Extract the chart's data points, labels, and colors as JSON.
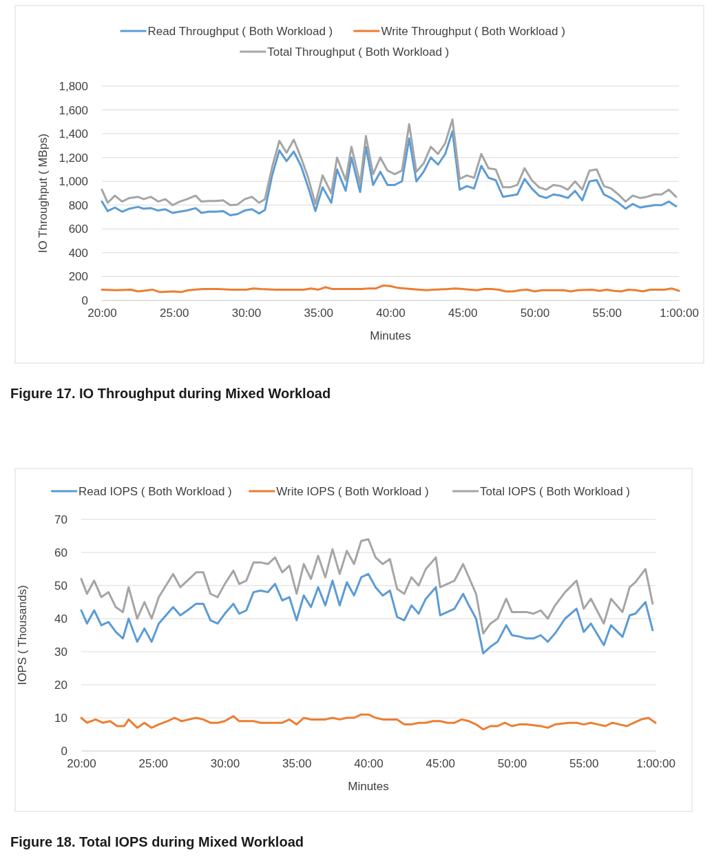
{
  "chart_data": [
    {
      "type": "line",
      "title": "Figure 17. IO Throughput during Mixed Workload",
      "xlabel": "Minutes",
      "ylabel": "IO Throughput ( MBps)",
      "grid": "y",
      "legend": "top",
      "marker": "none",
      "line_style": "solid",
      "xlim": [
        20,
        60
      ],
      "xticks": [
        {
          "value": 20,
          "label": "20:00"
        },
        {
          "value": 25,
          "label": "25:00"
        },
        {
          "value": 30,
          "label": "30:00"
        },
        {
          "value": 35,
          "label": "35:00"
        },
        {
          "value": 40,
          "label": "40:00"
        },
        {
          "value": 45,
          "label": "45:00"
        },
        {
          "value": 50,
          "label": "50:00"
        },
        {
          "value": 55,
          "label": "55:00"
        },
        {
          "value": 60,
          "label": "1:00:00"
        }
      ],
      "ylim": [
        0,
        1800
      ],
      "yticks": [
        0,
        200,
        400,
        600,
        800,
        {
          "value": 1000,
          "label": "1,000"
        },
        {
          "value": 1200,
          "label": "1,200"
        },
        {
          "value": 1400,
          "label": "1,400"
        },
        {
          "value": 1600,
          "label": "1,600"
        },
        {
          "value": 1800,
          "label": "1,800"
        }
      ],
      "series": [
        {
          "name": "Read Throughput ( Both Workload )",
          "color": "#5b9bd5",
          "x": [
            20.0,
            20.4,
            20.9,
            21.4,
            21.9,
            22.5,
            22.9,
            23.4,
            23.9,
            24.4,
            24.9,
            25.4,
            25.9,
            26.5,
            26.9,
            27.4,
            27.9,
            28.4,
            28.9,
            29.4,
            29.9,
            30.4,
            30.9,
            31.3,
            31.8,
            32.3,
            32.8,
            33.3,
            33.8,
            34.3,
            34.8,
            35.3,
            35.9,
            36.3,
            36.9,
            37.3,
            37.9,
            38.3,
            38.8,
            39.3,
            39.8,
            40.3,
            40.8,
            41.3,
            41.8,
            42.3,
            42.8,
            43.3,
            43.8,
            44.3,
            44.8,
            45.3,
            45.8,
            46.3,
            46.8,
            47.3,
            47.8,
            48.3,
            48.8,
            49.3,
            49.8,
            50.3,
            50.8,
            51.3,
            51.8,
            52.3,
            52.8,
            53.3,
            53.8,
            54.3,
            54.8,
            55.3,
            55.8,
            56.3,
            56.8,
            57.3,
            57.8,
            58.3,
            58.8,
            59.3,
            59.8
          ],
          "values": [
            830,
            750,
            780,
            745,
            770,
            785,
            770,
            775,
            755,
            765,
            735,
            745,
            755,
            775,
            735,
            745,
            745,
            750,
            715,
            725,
            755,
            765,
            730,
            760,
            1050,
            1260,
            1170,
            1250,
            1130,
            950,
            750,
            950,
            820,
            1100,
            920,
            1200,
            910,
            1290,
            970,
            1080,
            970,
            970,
            1000,
            1360,
            1000,
            1080,
            1200,
            1140,
            1230,
            1420,
            930,
            960,
            940,
            1130,
            1030,
            1010,
            870,
            880,
            890,
            1020,
            940,
            880,
            860,
            890,
            880,
            860,
            920,
            840,
            1000,
            1010,
            890,
            860,
            820,
            770,
            810,
            780,
            790,
            800,
            800,
            830,
            790
          ]
        },
        {
          "name": "Write  Throughput ( Both Workload )",
          "color": "#ed7d31",
          "x": [
            20,
            21,
            22,
            22.5,
            23.5,
            24,
            25,
            25.5,
            26,
            27,
            28,
            29,
            30,
            30.5,
            31,
            32,
            33,
            34,
            34.5,
            35,
            35.5,
            36,
            37,
            38,
            38.5,
            39,
            39.5,
            40,
            40.5,
            41,
            42,
            42.5,
            43,
            44,
            44.5,
            45,
            45.5,
            46,
            46.5,
            47,
            47.5,
            48,
            48.5,
            49,
            49.5,
            50,
            50.5,
            51,
            52,
            52.5,
            53,
            54,
            54.5,
            55,
            55.5,
            56,
            56.5,
            57,
            57.5,
            58,
            59,
            59.5,
            60
          ],
          "values": [
            90,
            85,
            90,
            75,
            90,
            70,
            75,
            70,
            85,
            95,
            95,
            90,
            90,
            100,
            95,
            90,
            90,
            90,
            100,
            90,
            110,
            95,
            95,
            95,
            100,
            100,
            125,
            120,
            105,
            100,
            90,
            85,
            90,
            95,
            100,
            95,
            90,
            85,
            95,
            95,
            90,
            75,
            75,
            85,
            90,
            75,
            85,
            85,
            85,
            75,
            85,
            90,
            80,
            90,
            80,
            75,
            90,
            85,
            75,
            90,
            90,
            100,
            80
          ]
        },
        {
          "name": "Total Throughput ( Both Workload )",
          "color": "#a5a5a5",
          "x": [
            20.0,
            20.4,
            20.9,
            21.4,
            21.9,
            22.5,
            22.9,
            23.4,
            23.9,
            24.4,
            24.9,
            25.4,
            25.9,
            26.5,
            26.9,
            27.4,
            27.9,
            28.4,
            28.9,
            29.4,
            29.9,
            30.4,
            30.9,
            31.3,
            31.8,
            32.3,
            32.8,
            33.3,
            33.8,
            34.3,
            34.8,
            35.3,
            35.9,
            36.3,
            36.9,
            37.3,
            37.9,
            38.3,
            38.8,
            39.3,
            39.8,
            40.3,
            40.8,
            41.3,
            41.8,
            42.3,
            42.8,
            43.3,
            43.8,
            44.3,
            44.8,
            45.3,
            45.8,
            46.3,
            46.8,
            47.3,
            47.8,
            48.3,
            48.8,
            49.3,
            49.8,
            50.3,
            50.8,
            51.3,
            51.8,
            52.3,
            52.8,
            53.3,
            53.8,
            54.3,
            54.8,
            55.3,
            55.8,
            56.3,
            56.8,
            57.3,
            57.8,
            58.3,
            58.8,
            59.3,
            59.8
          ],
          "values": [
            930,
            820,
            880,
            830,
            860,
            870,
            850,
            870,
            830,
            850,
            800,
            830,
            850,
            880,
            830,
            835,
            835,
            840,
            800,
            805,
            850,
            870,
            820,
            850,
            1120,
            1340,
            1240,
            1350,
            1200,
            1030,
            810,
            1050,
            900,
            1200,
            1010,
            1290,
            980,
            1380,
            1060,
            1200,
            1090,
            1060,
            1090,
            1480,
            1080,
            1150,
            1290,
            1230,
            1320,
            1520,
            1020,
            1050,
            1030,
            1230,
            1110,
            1100,
            950,
            950,
            970,
            1110,
            1010,
            950,
            930,
            970,
            960,
            930,
            1000,
            930,
            1090,
            1100,
            960,
            940,
            890,
            830,
            880,
            860,
            870,
            890,
            890,
            930,
            870
          ]
        }
      ]
    },
    {
      "type": "line",
      "title": "Figure 18. Total IOPS during Mixed Workload",
      "xlabel": "Minutes",
      "ylabel": "IOPS ( Thousands)",
      "grid": "y",
      "legend": "top",
      "marker": "none",
      "line_style": "solid",
      "xlim": [
        20,
        60
      ],
      "xticks": [
        {
          "value": 20,
          "label": "20:00"
        },
        {
          "value": 25,
          "label": "25:00"
        },
        {
          "value": 30,
          "label": "30:00"
        },
        {
          "value": 35,
          "label": "35:00"
        },
        {
          "value": 40,
          "label": "40:00"
        },
        {
          "value": 45,
          "label": "45:00"
        },
        {
          "value": 50,
          "label": "50:00"
        },
        {
          "value": 55,
          "label": "55:00"
        },
        {
          "value": 60,
          "label": "1:00:00"
        }
      ],
      "ylim": [
        0,
        70
      ],
      "yticks": [
        0,
        10,
        20,
        30,
        40,
        50,
        60,
        70
      ],
      "series": [
        {
          "name": "Read IOPS ( Both Workload )",
          "color": "#5b9bd5",
          "x": [
            20,
            20.4,
            20.9,
            21.4,
            21.9,
            22.4,
            22.9,
            23.3,
            23.9,
            24.4,
            24.9,
            25.4,
            25.9,
            26.4,
            26.9,
            27.4,
            28,
            28.5,
            29,
            29.5,
            30,
            30.6,
            31,
            31.5,
            32,
            32.5,
            33,
            33.5,
            34,
            34.5,
            35,
            35.5,
            36,
            36.5,
            37,
            37.5,
            38,
            38.5,
            39,
            39.5,
            40,
            40.5,
            41,
            41.5,
            42,
            42.5,
            43,
            43.5,
            44,
            44.7,
            45,
            45.5,
            46,
            46.6,
            47,
            47.5,
            48,
            48.5,
            49,
            49.6,
            50,
            50.6,
            51,
            51.5,
            52,
            52.5,
            53,
            53.7,
            54.5,
            55,
            55.5,
            56.4,
            56.9,
            57.7,
            58.2,
            58.6,
            59.3,
            59.8
          ],
          "values": [
            42.5,
            38.5,
            42.5,
            38,
            39,
            36,
            34,
            40,
            33,
            37,
            33,
            38.5,
            41,
            43.5,
            41,
            42.5,
            44.5,
            44.5,
            39.5,
            38.5,
            41.5,
            44.5,
            41.5,
            42.5,
            48,
            48.5,
            48,
            50.5,
            45.5,
            46.5,
            39.5,
            47,
            43.5,
            49.5,
            44,
            51.5,
            44,
            51,
            47,
            52.5,
            53.5,
            49.5,
            47,
            48.5,
            40.5,
            39.5,
            44,
            41.5,
            46,
            49.5,
            41,
            42,
            43,
            47.5,
            44,
            40,
            29.5,
            31.5,
            33,
            38,
            35,
            34.5,
            34,
            34,
            35,
            33,
            35.5,
            40,
            43,
            36,
            38.5,
            32,
            38,
            34.5,
            41,
            41.5,
            45,
            36.5
          ]
        },
        {
          "name": "Write IOPS ( Both Workload )",
          "color": "#ed7d31",
          "x": [
            20,
            20.4,
            21,
            21.5,
            22,
            22.5,
            23,
            23.3,
            23.9,
            24.4,
            24.9,
            25.4,
            26,
            26.5,
            27,
            27.5,
            28,
            28.5,
            29,
            29.5,
            30,
            30.6,
            31,
            32,
            32.5,
            33,
            34,
            34.5,
            35,
            35.5,
            36,
            36.5,
            37,
            37.5,
            38,
            38.5,
            39,
            39.5,
            40,
            40.5,
            41,
            42,
            42.5,
            43,
            43.5,
            44,
            44.5,
            45,
            45.5,
            46,
            46.5,
            47,
            47.5,
            48,
            48.5,
            49,
            49.5,
            50,
            50.5,
            51,
            52,
            52.5,
            53,
            54,
            54.5,
            55,
            55.5,
            56,
            56.5,
            57,
            57.5,
            58,
            58.5,
            59,
            59.5,
            60
          ],
          "values": [
            10,
            8.5,
            9.5,
            8.5,
            9,
            7.5,
            7.5,
            9.5,
            7,
            8.5,
            7,
            8,
            9,
            10,
            9,
            9.5,
            10,
            9.5,
            8.5,
            8.5,
            9,
            10.5,
            9,
            9,
            8.5,
            8.5,
            8.5,
            9.5,
            8,
            10,
            9.5,
            9.5,
            9.5,
            10,
            9.5,
            10,
            10,
            11,
            11,
            10,
            9.5,
            9.5,
            8,
            8,
            8.5,
            8.5,
            9,
            9,
            8.5,
            8.5,
            9.5,
            9,
            8,
            6.5,
            7.5,
            7.5,
            8.5,
            7.5,
            8,
            8,
            7.5,
            7,
            8,
            8.5,
            8.5,
            8,
            8.5,
            8,
            7.5,
            8.5,
            8,
            7.5,
            8.5,
            9.5,
            10,
            8.5
          ]
        },
        {
          "name": "Total IOPS ( Both Workload )",
          "color": "#a5a5a5",
          "x": [
            20,
            20.4,
            20.9,
            21.4,
            21.9,
            22.4,
            22.9,
            23.3,
            23.9,
            24.4,
            24.9,
            25.4,
            25.9,
            26.4,
            26.9,
            27.4,
            28,
            28.5,
            29,
            29.5,
            30,
            30.6,
            31,
            31.5,
            32,
            32.5,
            33,
            33.5,
            34,
            34.5,
            35,
            35.5,
            36,
            36.5,
            37,
            37.5,
            38,
            38.5,
            39,
            39.5,
            40,
            40.5,
            41,
            41.5,
            42,
            42.5,
            43,
            43.5,
            44,
            44.7,
            45,
            45.5,
            46,
            46.6,
            47,
            47.5,
            48,
            48.5,
            49,
            49.6,
            50,
            50.6,
            51,
            51.5,
            52,
            52.5,
            53,
            53.7,
            54.5,
            55,
            55.5,
            56.4,
            56.9,
            57.7,
            58.2,
            58.6,
            59.3,
            59.8
          ],
          "values": [
            52,
            47.5,
            51.5,
            46.5,
            48,
            43.5,
            42,
            49.5,
            40,
            45,
            40,
            46.5,
            50,
            53.5,
            49.5,
            51.5,
            54,
            54,
            47.5,
            46.5,
            50.5,
            54.5,
            50.5,
            51.5,
            57,
            57,
            56.5,
            58.5,
            54,
            56,
            47.5,
            56.5,
            52,
            59,
            52.5,
            61,
            53.5,
            60.5,
            56.5,
            63.5,
            64,
            58.5,
            56.5,
            58,
            49,
            47.5,
            52.5,
            50,
            55,
            58.5,
            49.5,
            50.5,
            51.5,
            56.5,
            52.5,
            47.5,
            35.5,
            38.5,
            40,
            46,
            42,
            42,
            42,
            41.5,
            42.5,
            40,
            44,
            48,
            51.5,
            43,
            46,
            38.5,
            46,
            42,
            49.5,
            51,
            55,
            44.5
          ]
        }
      ]
    }
  ]
}
